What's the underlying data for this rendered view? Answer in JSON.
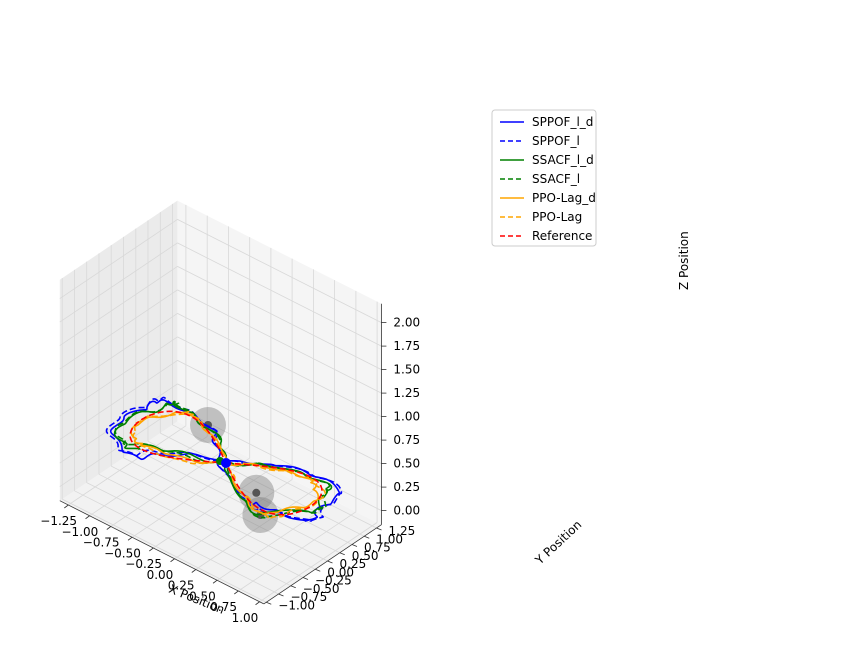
{
  "chart_data": {
    "type": "line",
    "projection": "3d",
    "title": "",
    "xlabel": "X Position",
    "ylabel": "Y Position",
    "zlabel": "Z Position",
    "x_ticks": [
      "−1.25",
      "−1.00",
      "−0.75",
      "−0.50",
      "−0.25",
      "0.00",
      "0.25",
      "0.50",
      "0.75",
      "1.00"
    ],
    "y_ticks": [
      "−1.00",
      "−0.75",
      "−0.50",
      "−0.25",
      "0.00",
      "0.25",
      "0.50",
      "0.75",
      "1.00",
      "1.25"
    ],
    "z_ticks": [
      "0.00",
      "0.25",
      "0.50",
      "0.75",
      "1.00",
      "1.25",
      "1.50",
      "1.75",
      "2.00"
    ],
    "xlim": [
      -1.35,
      1.05
    ],
    "ylim": [
      -1.05,
      1.35
    ],
    "zlim": [
      -0.15,
      2.2
    ],
    "grid": true,
    "legend_position": "top-right",
    "series": [
      {
        "name": "SPPOF_l_d",
        "color": "#0000ff",
        "dash": false
      },
      {
        "name": "SPPOF_l",
        "color": "#0000ff",
        "dash": true
      },
      {
        "name": "SSACF_l_d",
        "color": "#008000",
        "dash": false
      },
      {
        "name": "SSACF_l",
        "color": "#008000",
        "dash": true
      },
      {
        "name": "PPO-Lag_d",
        "color": "#ffa500",
        "dash": false
      },
      {
        "name": "PPO-Lag",
        "color": "#ffa500",
        "dash": true
      },
      {
        "name": "Reference",
        "color": "#ff0000",
        "dash": true
      }
    ],
    "reference": {
      "shape": "figure-eight",
      "z": 0.5,
      "x_amplitude": 1.0,
      "y_amplitude": 0.5
    },
    "obstacles": [
      {
        "x": -0.5,
        "y": 0.5,
        "z": 0.5
      },
      {
        "x": 0.5,
        "y": -0.25,
        "z": 0.5
      },
      {
        "x": 0.75,
        "y": -0.6,
        "z": 0.5
      }
    ],
    "start_point": {
      "x": 0.0,
      "y": 0.0,
      "z": 0.5
    }
  }
}
